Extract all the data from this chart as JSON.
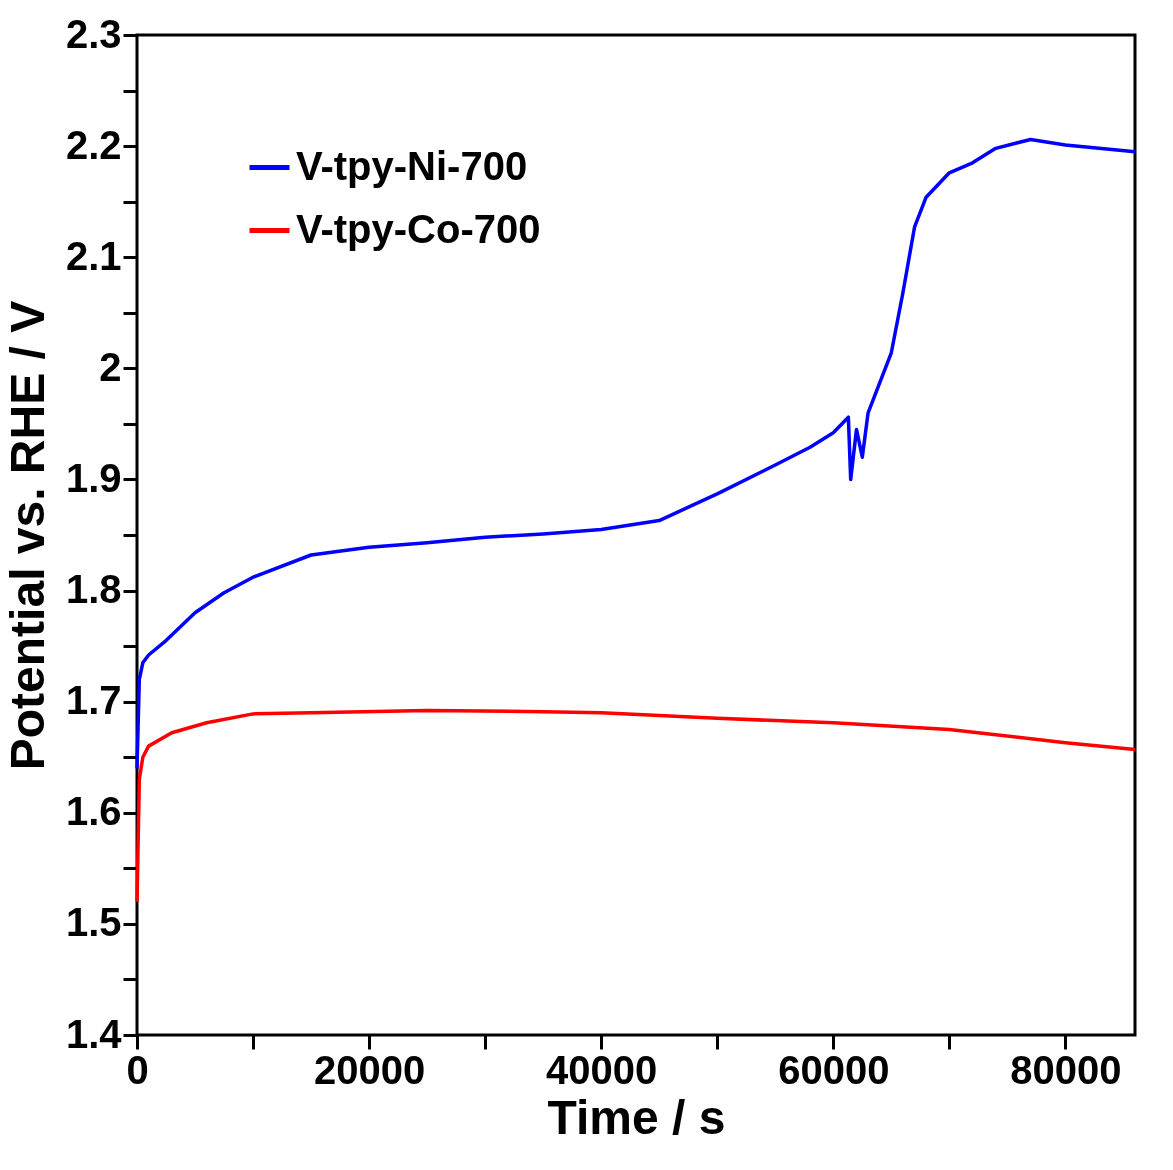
{
  "chart_data": {
    "type": "line",
    "xlabel": "Time / s",
    "ylabel": "Potential vs. RHE / V",
    "xlim": [
      0,
      86000
    ],
    "ylim": [
      1.4,
      2.3
    ],
    "xticks": [
      0,
      {
        "value": 10000,
        "label": null
      },
      20000,
      {
        "value": 30000,
        "label": null
      },
      40000,
      {
        "value": 50000,
        "label": null
      },
      60000,
      {
        "value": 70000,
        "label": null
      },
      80000
    ],
    "yticks": [
      1.4,
      {
        "value": 1.45,
        "label": null
      },
      1.5,
      {
        "value": 1.55,
        "label": null
      },
      1.6,
      {
        "value": 1.65,
        "label": null
      },
      1.7,
      {
        "value": 1.75,
        "label": null
      },
      1.8,
      {
        "value": 1.85,
        "label": null
      },
      1.9,
      {
        "value": 1.95,
        "label": null
      },
      2,
      {
        "value": 2.05,
        "label": null
      },
      2.1,
      {
        "value": 2.15,
        "label": null
      },
      2.2,
      {
        "value": 2.25,
        "label": null
      },
      2.3
    ],
    "grid": false,
    "legend": "top left",
    "marker": "none",
    "line_style": "solid",
    "series": [
      {
        "name": "V-tpy-Ni-700",
        "color": "#0000ff",
        "x": [
          0,
          200,
          500,
          1000,
          2500,
          5000,
          7500,
          10000,
          15000,
          20000,
          25000,
          30000,
          35000,
          40000,
          45000,
          50000,
          55000,
          58000,
          60000,
          61300,
          61500,
          62000,
          62500,
          63000,
          64000,
          65000,
          66000,
          67000,
          68000,
          70000,
          72000,
          74000,
          77000,
          80000,
          86000
        ],
        "values": [
          1.64,
          1.72,
          1.735,
          1.742,
          1.755,
          1.78,
          1.798,
          1.812,
          1.832,
          1.839,
          1.843,
          1.848,
          1.851,
          1.855,
          1.863,
          1.887,
          1.913,
          1.929,
          1.942,
          1.956,
          1.9,
          1.945,
          1.92,
          1.96,
          1.987,
          2.014,
          2.068,
          2.127,
          2.154,
          2.176,
          2.185,
          2.198,
          2.206,
          2.201,
          2.195
        ]
      },
      {
        "name": "V-tpy-Co-700",
        "color": "#ff0000",
        "x": [
          0,
          200,
          500,
          1000,
          3000,
          6000,
          10000,
          15000,
          25000,
          35000,
          40000,
          50000,
          60000,
          70000,
          80000,
          86000
        ],
        "values": [
          1.52,
          1.63,
          1.65,
          1.66,
          1.672,
          1.681,
          1.689,
          1.69,
          1.692,
          1.691,
          1.69,
          1.685,
          1.681,
          1.675,
          1.663,
          1.657
        ]
      }
    ]
  }
}
